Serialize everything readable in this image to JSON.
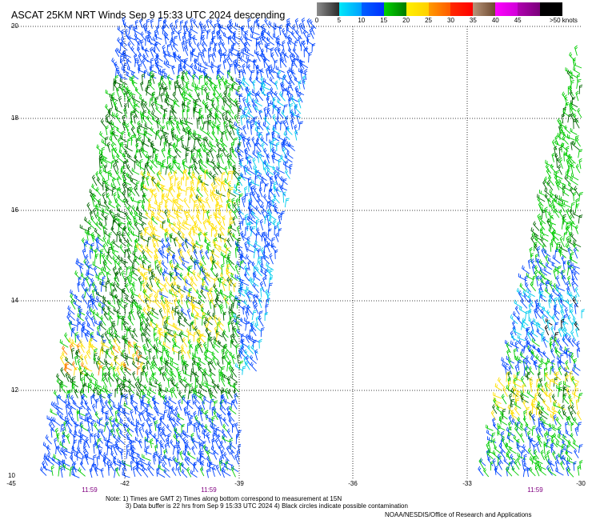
{
  "title": "ASCAT 25KM NRT Winds Sep  9 15:33 UTC 2024 descending",
  "colorbar": {
    "ticks": [
      "0",
      "5",
      "10",
      "15",
      "20",
      "25",
      "30",
      "35",
      "40",
      "45"
    ],
    "units": ">50 knots",
    "segments": [
      [
        "#8c8c8c",
        "#2a2a2a"
      ],
      [
        "#00e8f8",
        "#00a0ff"
      ],
      [
        "#0060ff",
        "#0030ff"
      ],
      [
        "#00d400",
        "#007a00"
      ],
      [
        "#fff000",
        "#ffd000"
      ],
      [
        "#ff9a00",
        "#ff5a00"
      ],
      [
        "#ff2a00",
        "#ff0000"
      ],
      [
        "#b8957a",
        "#6e4a30"
      ],
      [
        "#ff00ff",
        "#d000d8"
      ],
      [
        "#b000b0",
        "#7a007a"
      ],
      [
        "#000000",
        "#000000"
      ]
    ]
  },
  "map": {
    "lat_labels": [
      "20",
      "18",
      "16",
      "14",
      "12",
      "10"
    ],
    "lon_labels": [
      "-45",
      "-42",
      "-39",
      "-36",
      "-33",
      "-30"
    ],
    "pass_times": [
      "11:59",
      "11:59",
      "11:59"
    ],
    "wind_colors": {
      "blue": "#0044ff",
      "green": "#00cc00",
      "dark_green": "#006400",
      "yellow": "#ffe000",
      "orange": "#ff8000",
      "cyan": "#00ccee",
      "black": "#000000",
      "red": "#ff0000"
    }
  },
  "notes": {
    "line1": "Note: 1) Times are GMT 2) Times along bottom correspond to measurement at 15N",
    "line2": "3) Data buffer is 22 hrs from Sep  9 15:33 UTC 2024 4) Black circles indicate possible contamination",
    "credit": "NOAA/NESDIS/Office of Research and Applications"
  }
}
